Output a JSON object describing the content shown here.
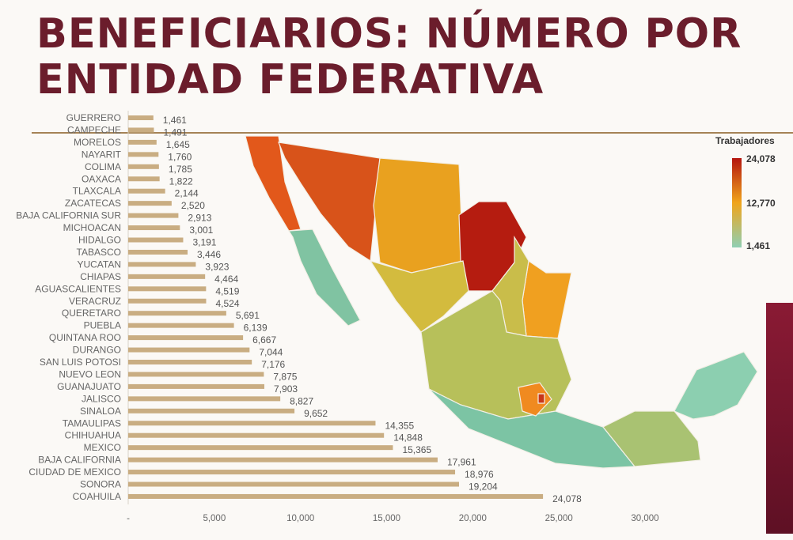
{
  "title": "BENEFICIARIOS: NÚMERO POR ENTIDAD FEDERATIVA",
  "chart_data": {
    "type": "bar",
    "orientation": "horizontal",
    "title": "BENEFICIARIOS: NÚMERO POR ENTIDAD FEDERATIVA",
    "categories": [
      "GUERRERO",
      "CAMPECHE",
      "MORELOS",
      "NAYARIT",
      "COLIMA",
      "OAXACA",
      "TLAXCALA",
      "ZACATECAS",
      "BAJA CALIFORNIA SUR",
      "MICHOACAN",
      "HIDALGO",
      "TABASCO",
      "YUCATAN",
      "CHIAPAS",
      "AGUASCALIENTES",
      "VERACRUZ",
      "QUERETARO",
      "PUEBLA",
      "QUINTANA ROO",
      "DURANGO",
      "SAN LUIS POTOSI",
      "NUEVO LEON",
      "GUANAJUATO",
      "JALISCO",
      "SINALOA",
      "TAMAULIPAS",
      "CHIHUAHUA",
      "MEXICO",
      "BAJA CALIFORNIA",
      "CIUDAD DE MEXICO",
      "SONORA",
      "COAHUILA"
    ],
    "values": [
      1461,
      1491,
      1645,
      1760,
      1785,
      1822,
      2144,
      2520,
      2913,
      3001,
      3191,
      3446,
      3923,
      4464,
      4519,
      4524,
      5691,
      6139,
      6667,
      7044,
      7176,
      7875,
      7903,
      8827,
      9652,
      14355,
      14848,
      15365,
      17961,
      18976,
      19204,
      24078
    ],
    "value_labels": [
      "1,461",
      "1,491",
      "1,645",
      "1,760",
      "1,785",
      "1,822",
      "2,144",
      "2,520",
      "2,913",
      "3,001",
      "3,191",
      "3,446",
      "3,923",
      "4,464",
      "4,519",
      "4,524",
      "5,691",
      "6,139",
      "6,667",
      "7,044",
      "7,176",
      "7,875",
      "7,903",
      "8,827",
      "9,652",
      "14,355",
      "14,848",
      "15,365",
      "17,961",
      "18,976",
      "19,204",
      "24,078"
    ],
    "xlim": [
      0,
      30000
    ],
    "xticks": [
      0,
      5000,
      10000,
      15000,
      20000,
      25000,
      30000
    ],
    "xtick_labels": [
      "-",
      "5,000",
      "10,000",
      "15,000",
      "20,000",
      "25,000",
      "30,000"
    ],
    "bar_color": "#c9ad82",
    "grid": false
  },
  "map_legend": {
    "title": "Trabajadores",
    "max_label": "24,078",
    "mid_label": "12,770",
    "min_label": "1,461",
    "colors": [
      "#b4150f",
      "#f0a51c",
      "#8fcfb3"
    ]
  },
  "map_regions": [
    {
      "name": "baja-california",
      "color": "#e2581b"
    },
    {
      "name": "baja-california-sur",
      "color": "#80c3a2"
    },
    {
      "name": "sonora",
      "color": "#d8531a"
    },
    {
      "name": "chihuahua",
      "color": "#e9a11f"
    },
    {
      "name": "coahuila",
      "color": "#b51c10"
    },
    {
      "name": "tamaulipas",
      "color": "#f0a020"
    },
    {
      "name": "nuevo-leon",
      "color": "#c9bd4a"
    },
    {
      "name": "sinaloa-durango",
      "color": "#d3bb3e"
    },
    {
      "name": "central",
      "color": "#b7c05a"
    },
    {
      "name": "pacific-south",
      "color": "#7cc4a4"
    },
    {
      "name": "southeast",
      "color": "#a9c272"
    },
    {
      "name": "yucatan-peninsula",
      "color": "#8ccfb0"
    },
    {
      "name": "mexico-state",
      "color": "#f08a20"
    },
    {
      "name": "ciudad-de-mexico",
      "color": "#c8361a"
    }
  ]
}
